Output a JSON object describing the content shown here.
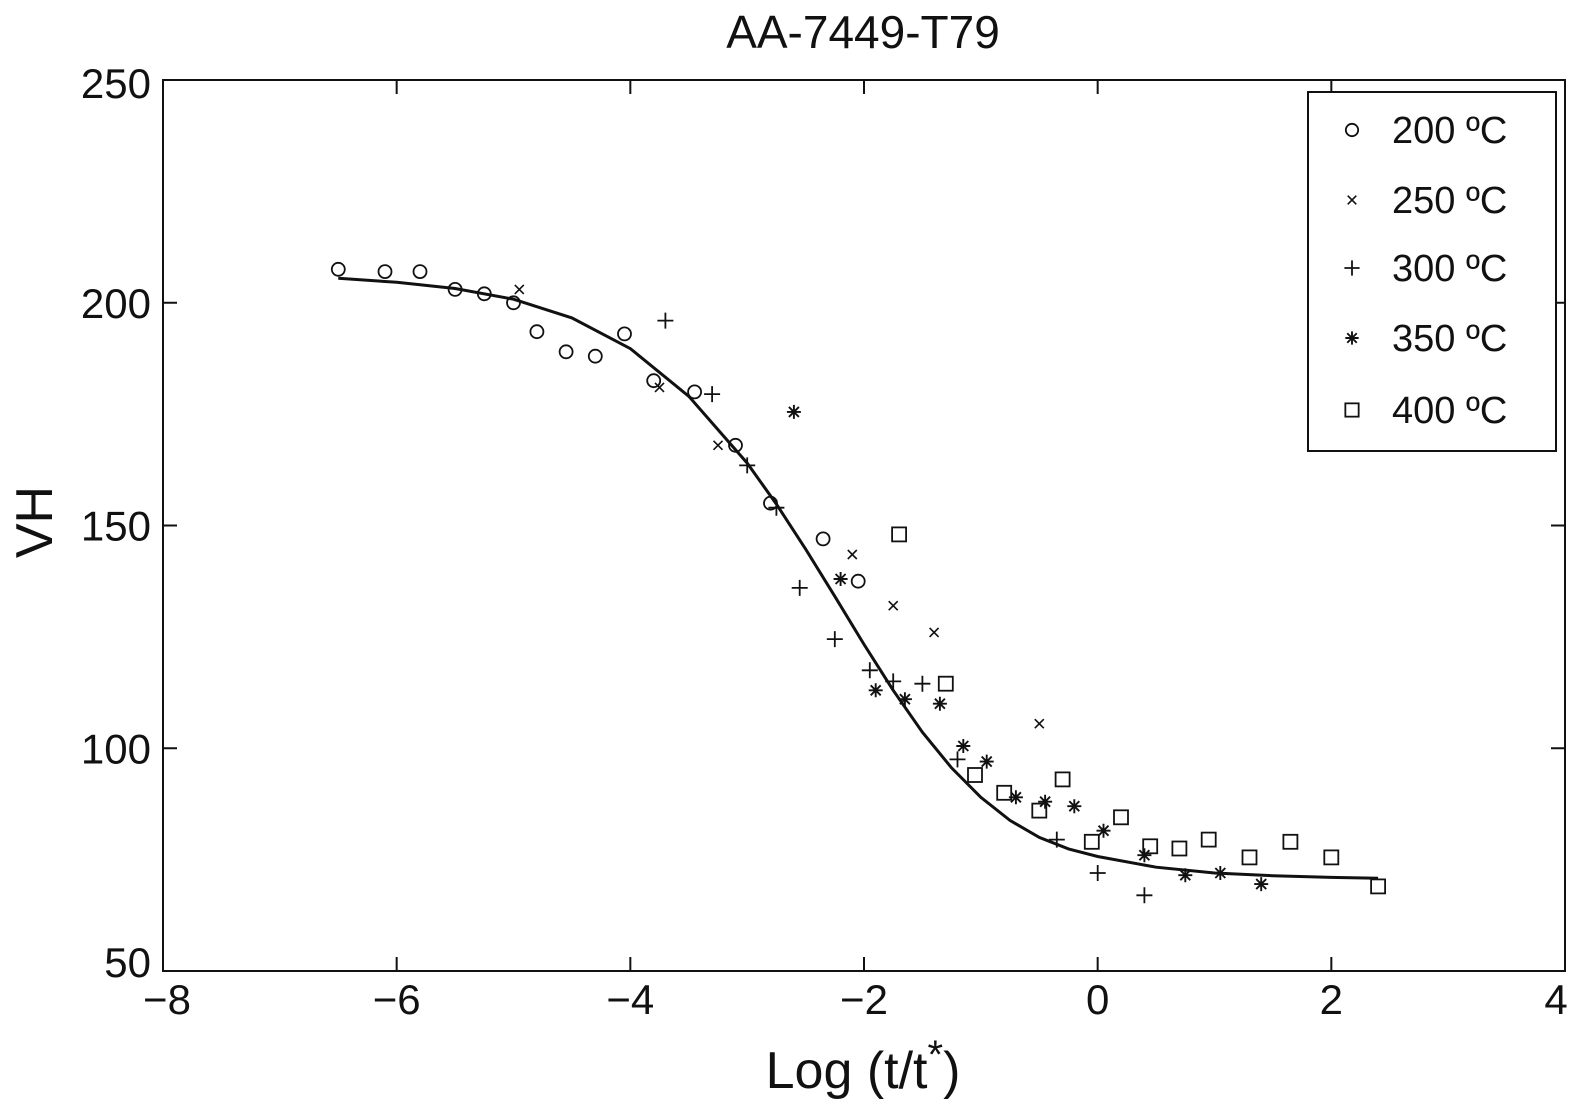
{
  "chart_data": {
    "type": "scatter",
    "title": "AA-7449-T79",
    "xlabel_main": "Log (t/t",
    "xlabel_sup": "*",
    "xlabel_close": ")",
    "ylabel": "VH",
    "xlim": [
      -8,
      4
    ],
    "ylim": [
      50,
      250
    ],
    "xticks": [
      -8,
      -6,
      -4,
      -2,
      0,
      2,
      4
    ],
    "xtick_labels": [
      "−8",
      "−6",
      "−4",
      "−2",
      "0",
      "2",
      "4"
    ],
    "yticks": [
      50,
      100,
      150,
      200,
      250
    ],
    "ytick_labels": [
      "50",
      "100",
      "150",
      "200",
      "250"
    ],
    "grid": false,
    "legend_position": "top-right",
    "colors": {
      "ink": "#111111",
      "background": "#ffffff"
    },
    "series": [
      {
        "name": "200 ºC",
        "marker": "circle",
        "points": [
          [
            -6.5,
            207.5
          ],
          [
            -6.1,
            207
          ],
          [
            -5.8,
            207
          ],
          [
            -5.5,
            203
          ],
          [
            -5.25,
            202
          ],
          [
            -5.0,
            200
          ],
          [
            -4.8,
            193.5
          ],
          [
            -4.55,
            189
          ],
          [
            -4.3,
            188
          ],
          [
            -4.05,
            193
          ],
          [
            -3.8,
            182.5
          ],
          [
            -3.45,
            180
          ],
          [
            -3.1,
            168
          ],
          [
            -2.8,
            155
          ],
          [
            -2.35,
            147
          ],
          [
            -2.05,
            137.5
          ]
        ]
      },
      {
        "name": "250 ºC",
        "marker": "x",
        "points": [
          [
            -4.95,
            203
          ],
          [
            -3.75,
            181
          ],
          [
            -3.25,
            168
          ],
          [
            -2.1,
            143.5
          ],
          [
            -1.75,
            132
          ],
          [
            -1.4,
            126
          ],
          [
            -0.5,
            105.5
          ]
        ]
      },
      {
        "name": "300 ºC",
        "marker": "plus",
        "points": [
          [
            -3.7,
            196
          ],
          [
            -3.3,
            179.5
          ],
          [
            -3.0,
            163.5
          ],
          [
            -2.75,
            154
          ],
          [
            -2.55,
            136
          ],
          [
            -2.25,
            124.5
          ],
          [
            -1.95,
            117.5
          ],
          [
            -1.75,
            115
          ],
          [
            -1.5,
            114.5
          ],
          [
            -1.2,
            97.5
          ],
          [
            -0.35,
            79.5
          ],
          [
            0.0,
            72
          ],
          [
            0.4,
            67
          ]
        ]
      },
      {
        "name": "350 ºC",
        "marker": "asterisk",
        "points": [
          [
            -2.6,
            175.5
          ],
          [
            -2.2,
            138
          ],
          [
            -1.9,
            113
          ],
          [
            -1.65,
            111
          ],
          [
            -1.35,
            110
          ],
          [
            -1.15,
            100.5
          ],
          [
            -0.95,
            97
          ],
          [
            -0.7,
            89
          ],
          [
            -0.45,
            88
          ],
          [
            -0.2,
            87
          ],
          [
            0.05,
            81.5
          ],
          [
            0.4,
            76
          ],
          [
            0.75,
            71.5
          ],
          [
            1.05,
            72
          ],
          [
            1.4,
            69.5
          ]
        ]
      },
      {
        "name": "400 ºC",
        "marker": "square",
        "points": [
          [
            -1.7,
            148
          ],
          [
            -1.3,
            114.5
          ],
          [
            -1.05,
            94
          ],
          [
            -0.8,
            90
          ],
          [
            -0.5,
            86
          ],
          [
            -0.3,
            93
          ],
          [
            -0.05,
            79
          ],
          [
            0.2,
            84.5
          ],
          [
            0.45,
            78
          ],
          [
            0.7,
            77.5
          ],
          [
            0.95,
            79.5
          ],
          [
            1.3,
            75.5
          ],
          [
            1.65,
            79
          ],
          [
            2.0,
            75.5
          ],
          [
            2.4,
            69
          ]
        ]
      }
    ],
    "fit_curve": {
      "x": [
        -6.5,
        -6.0,
        -5.5,
        -5.0,
        -4.5,
        -4.0,
        -3.5,
        -3.0,
        -2.75,
        -2.5,
        -2.25,
        -2.0,
        -1.75,
        -1.5,
        -1.25,
        -1.0,
        -0.75,
        -0.5,
        -0.25,
        0.0,
        0.5,
        1.0,
        1.5,
        2.0,
        2.4
      ],
      "y": [
        205.5,
        204.6,
        203.2,
        200.8,
        196.6,
        189.7,
        179.0,
        164.0,
        154.8,
        144.7,
        134.1,
        123.3,
        113.0,
        103.6,
        95.6,
        89.0,
        83.8,
        80.0,
        77.4,
        75.7,
        73.3,
        72.0,
        71.4,
        71.0,
        70.8
      ]
    }
  }
}
